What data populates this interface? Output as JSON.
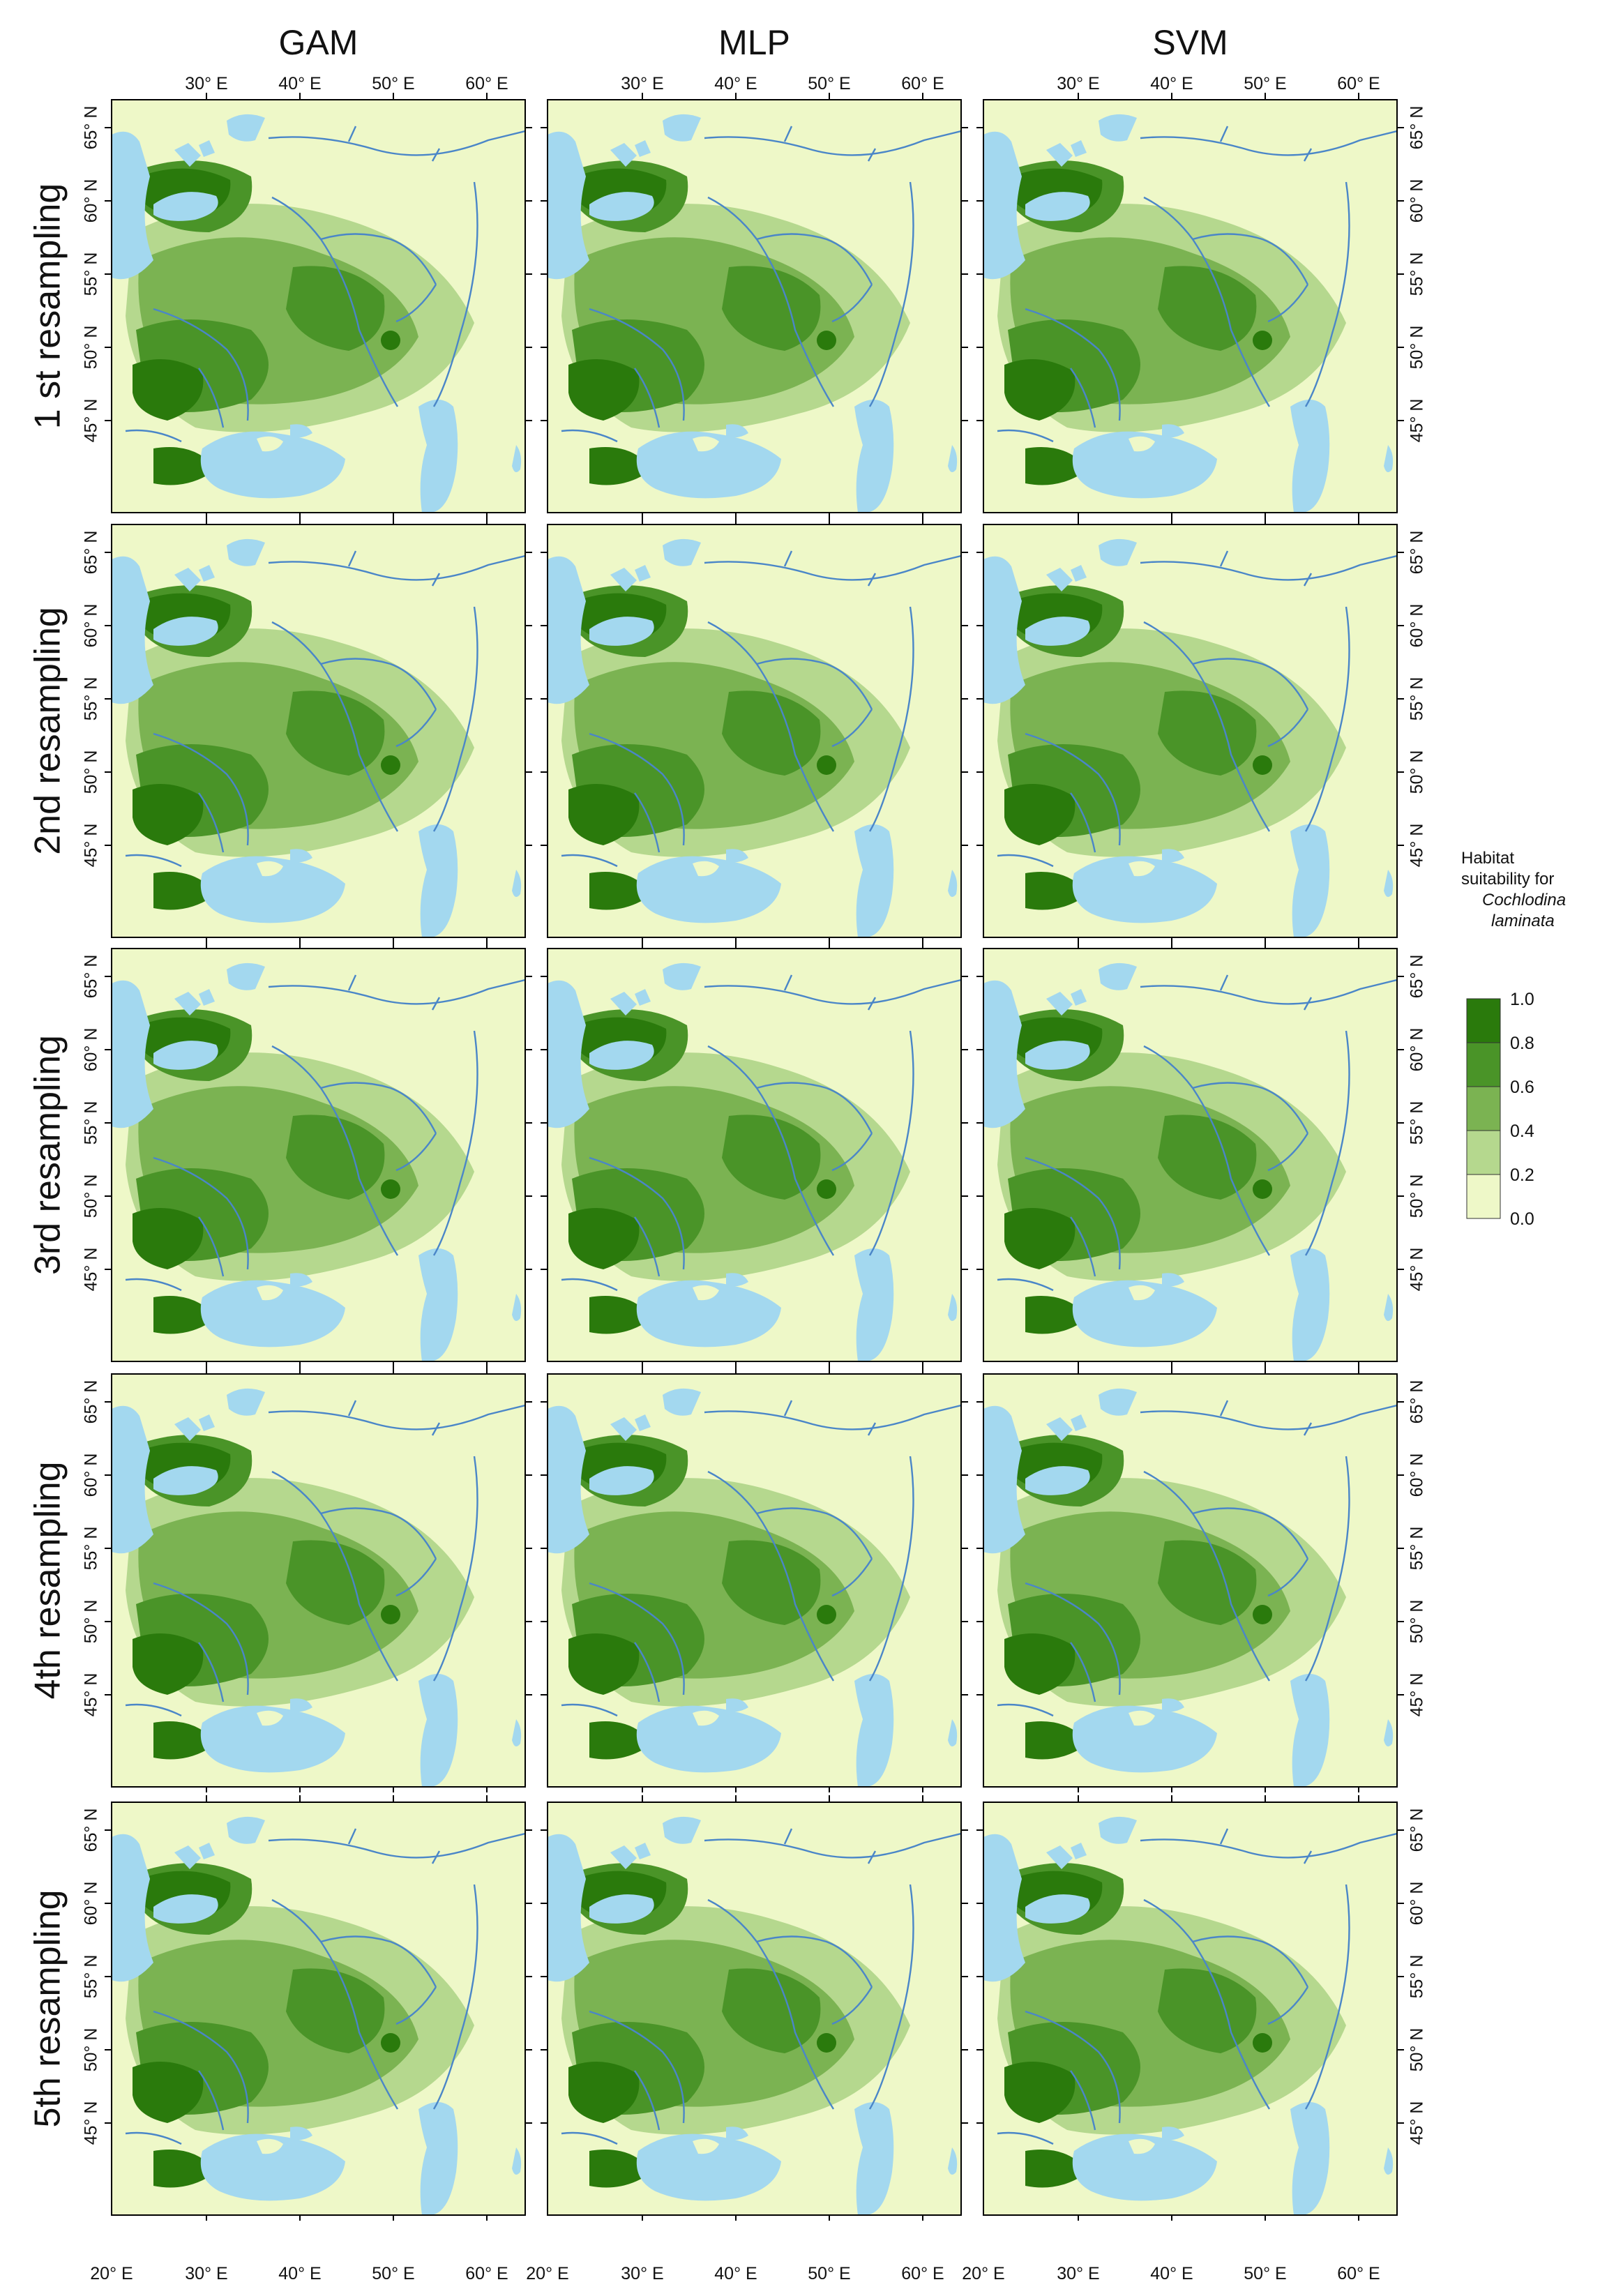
{
  "figure": {
    "columns": [
      "GAM",
      "MLP",
      "SVM"
    ],
    "rows": [
      "1 st resampling",
      "2nd resampling",
      "3rd resampling",
      "4th resampling",
      "5th resampling"
    ],
    "longitude_ticks_top": [
      "30° E",
      "40° E",
      "50° E",
      "60° E"
    ],
    "longitude_ticks_bottom": [
      "20° E",
      "30° E",
      "40° E",
      "50° E",
      "60° E"
    ],
    "latitude_ticks": [
      "65° N",
      "60° N",
      "55° N",
      "50° N",
      "45° N"
    ],
    "legend": {
      "title_line1": "Habitat",
      "title_line2": "suitability for",
      "species_line1": "Cochlodina",
      "species_line2": "laminata",
      "ticks": [
        "1.0",
        "0.8",
        "0.6",
        "0.4",
        "0.2",
        "0.0"
      ],
      "colors": [
        "#2a7a0c",
        "#4a9428",
        "#7bb352",
        "#b5d88e",
        "#eef8c8"
      ]
    },
    "colors": {
      "water": "#a3d8ef",
      "river": "#4a86c8",
      "background": "#eef8c8"
    }
  }
}
